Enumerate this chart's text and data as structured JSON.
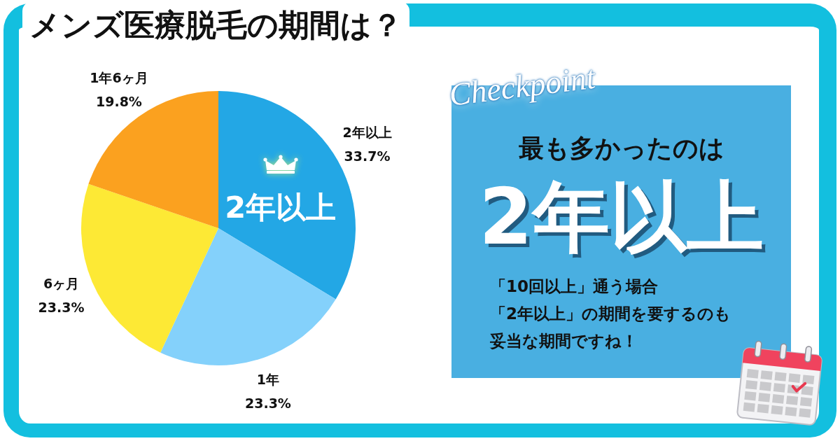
{
  "chart_data": {
    "type": "pie",
    "title": "メンズ医療脱毛の期間は？",
    "categories": [
      "2年以上",
      "1年",
      "6ヶ月",
      "1年6ヶ月"
    ],
    "values": [
      33.7,
      23.3,
      23.3,
      19.8
    ],
    "value_labels": [
      "33.7%",
      "23.3%",
      "23.3%",
      "19.8%"
    ],
    "colors": [
      "#23a7e5",
      "#84d1fb",
      "#fde935",
      "#fba11f"
    ],
    "annotations": [
      "2年以上",
      "Checkpoint",
      "最も多かったのは",
      "2年以上",
      "「10回以上」通う場合",
      "「2年以上」の期間を要するのも",
      "妥当な期間ですね！"
    ]
  }
}
